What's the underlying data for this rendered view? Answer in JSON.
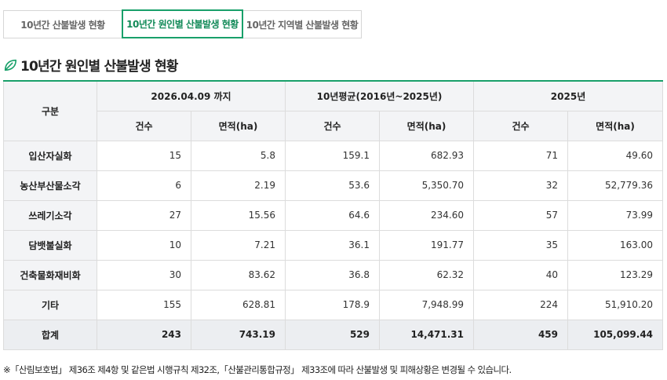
{
  "tabs": [
    {
      "label": "10년간 산불발생 현황",
      "active": false
    },
    {
      "label": "10년간 원인별 산불발생 현황",
      "active": true
    },
    {
      "label": "10년간 지역별 산불발생 현황",
      "active": false
    }
  ],
  "title": "10년간 원인별 산불발생 현황",
  "table": {
    "corner": "구분",
    "groups": [
      "2026.04.09 까지",
      "10년평균(2016년~2025년)",
      "2025년"
    ],
    "subheaders": [
      "건수",
      "면적(ha)",
      "건수",
      "면적(ha)",
      "건수",
      "면적(ha)"
    ],
    "rows": [
      {
        "label": "입산자실화",
        "values": [
          "15",
          "5.8",
          "159.1",
          "682.93",
          "71",
          "49.60"
        ]
      },
      {
        "label": "농산부산물소각",
        "values": [
          "6",
          "2.19",
          "53.6",
          "5,350.70",
          "32",
          "52,779.36"
        ]
      },
      {
        "label": "쓰레기소각",
        "values": [
          "27",
          "15.56",
          "64.6",
          "234.60",
          "57",
          "73.99"
        ]
      },
      {
        "label": "담뱃불실화",
        "values": [
          "10",
          "7.21",
          "36.1",
          "191.77",
          "35",
          "163.00"
        ]
      },
      {
        "label": "건축물화재비화",
        "values": [
          "30",
          "83.62",
          "36.8",
          "62.32",
          "40",
          "123.29"
        ]
      },
      {
        "label": "기타",
        "values": [
          "155",
          "628.81",
          "178.9",
          "7,948.99",
          "224",
          "51,910.20"
        ]
      }
    ],
    "total": {
      "label": "합계",
      "values": [
        "243",
        "743.19",
        "529",
        "14,471.31",
        "459",
        "105,099.44"
      ]
    }
  },
  "note": "※「산림보호법」 제36조 제4항 및 같은법 시행규칙 제32조,「산불관리통합규정」 제33조에 따라 산불발생 및 피해상황은 변경될 수 있습니다.",
  "colors": {
    "accent": "#19a06a",
    "header_bg": "#f3f4f6"
  },
  "icons": {
    "title": "leaf-icon"
  }
}
